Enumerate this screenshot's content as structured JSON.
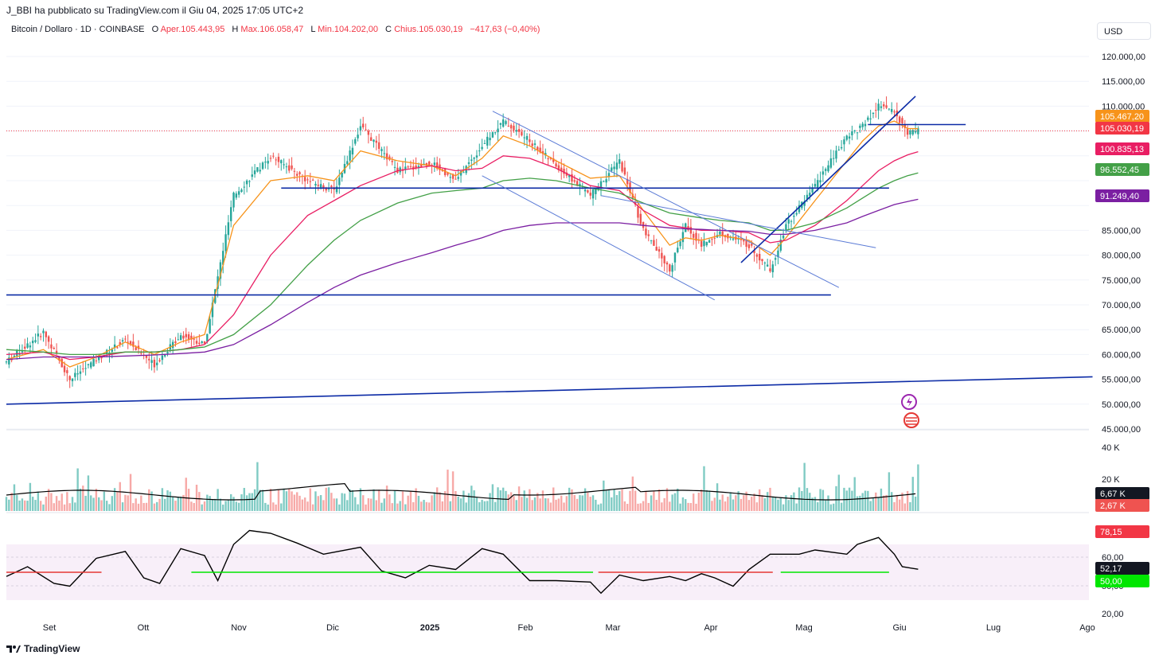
{
  "header": {
    "attribution": "J_BBI ha pubblicato su TradingView.com il Giu 04, 2025 17:05 UTC+2"
  },
  "legend": {
    "symbol": "Bitcoin / Dollaro · 1D · COINBASE",
    "open_label": "O",
    "open": "Aper.105.443,95",
    "high_label": "H",
    "high": "Max.106.058,47",
    "low_label": "L",
    "low": "Min.104.202,00",
    "close_label": "C",
    "close": "Chius.105.030,19",
    "change": "−417,63 (−0,40%)"
  },
  "currency_button": "USD",
  "footer": {
    "logo": "TradingView"
  },
  "colors": {
    "up": "#26a69a",
    "down": "#ef5350",
    "accent_blue": "#0c2ba6"
  },
  "chart_data": {
    "type": "candlestick",
    "title": "Bitcoin / Dollaro · 1D · COINBASE",
    "price_axis": {
      "ticks": [
        "120.000,00",
        "115.000,00",
        "110.000,00",
        "85.000,00",
        "80.000,00",
        "75.000,00",
        "70.000,00",
        "65.000,00",
        "60.000,00",
        "55.000,00",
        "50.000,00",
        "45.000,00"
      ],
      "ylim": [
        44000,
        122000
      ]
    },
    "x_axis": {
      "ticks": [
        "Set",
        "Ott",
        "Nov",
        "Dic",
        "2025",
        "Feb",
        "Mar",
        "Apr",
        "Mag",
        "Giu",
        "Lug",
        "Ago"
      ],
      "bold": [
        "2025"
      ]
    },
    "price_labels": [
      {
        "text": "105.467,20",
        "price": 105467,
        "color": "#f7931a"
      },
      {
        "text": "105.030,19",
        "price": 105030,
        "color": "#f23645"
      },
      {
        "text": "100.835,13",
        "price": 100835,
        "color": "#e91e63"
      },
      {
        "text": "96.552,45",
        "price": 96552,
        "color": "#43a047"
      },
      {
        "text": "91.249,40",
        "price": 91249,
        "color": "#7b1fa2"
      }
    ],
    "price_points": [
      [
        0,
        58500
      ],
      [
        14,
        64500
      ],
      [
        24,
        55000
      ],
      [
        34,
        59000
      ],
      [
        45,
        63000
      ],
      [
        56,
        58000
      ],
      [
        66,
        64000
      ],
      [
        75,
        62000
      ],
      [
        86,
        92000
      ],
      [
        100,
        100000
      ],
      [
        114,
        95000
      ],
      [
        124,
        93000
      ],
      [
        134,
        106000
      ],
      [
        148,
        97000
      ],
      [
        161,
        98500
      ],
      [
        170,
        95000
      ],
      [
        180,
        102000
      ],
      [
        188,
        107000
      ],
      [
        198,
        103000
      ],
      [
        208,
        98000
      ],
      [
        221,
        92000
      ],
      [
        232,
        99000
      ],
      [
        241,
        85000
      ],
      [
        251,
        77000
      ],
      [
        257,
        86000
      ],
      [
        263,
        82000
      ],
      [
        270,
        84500
      ],
      [
        281,
        82000
      ],
      [
        289,
        77000
      ],
      [
        295,
        86000
      ],
      [
        306,
        94000
      ],
      [
        318,
        104000
      ],
      [
        324,
        106000
      ],
      [
        330,
        110000
      ],
      [
        336,
        109000
      ],
      [
        341,
        104500
      ],
      [
        345,
        105000
      ]
    ],
    "moving_averages": [
      {
        "name": "EMA 20",
        "color": "#f7931a",
        "points": [
          [
            0,
            59000
          ],
          [
            14,
            61000
          ],
          [
            24,
            57500
          ],
          [
            34,
            59500
          ],
          [
            45,
            62500
          ],
          [
            56,
            60000
          ],
          [
            66,
            62500
          ],
          [
            75,
            64000
          ],
          [
            86,
            86000
          ],
          [
            100,
            95000
          ],
          [
            114,
            96000
          ],
          [
            124,
            95000
          ],
          [
            134,
            101000
          ],
          [
            148,
            99000
          ],
          [
            161,
            98000
          ],
          [
            170,
            96000
          ],
          [
            180,
            99500
          ],
          [
            188,
            104000
          ],
          [
            198,
            102000
          ],
          [
            208,
            99000
          ],
          [
            221,
            95500
          ],
          [
            232,
            96000
          ],
          [
            241,
            89000
          ],
          [
            251,
            82000
          ],
          [
            257,
            83500
          ],
          [
            263,
            83000
          ],
          [
            270,
            84000
          ],
          [
            281,
            83000
          ],
          [
            289,
            80000
          ],
          [
            295,
            83500
          ],
          [
            306,
            91000
          ],
          [
            318,
            99000
          ],
          [
            324,
            103000
          ],
          [
            330,
            106000
          ],
          [
            336,
            107000
          ],
          [
            341,
            105500
          ],
          [
            345,
            105467
          ]
        ]
      },
      {
        "name": "EMA 50",
        "color": "#e91e63",
        "points": [
          [
            0,
            60000
          ],
          [
            14,
            60500
          ],
          [
            24,
            59000
          ],
          [
            34,
            59500
          ],
          [
            45,
            60500
          ],
          [
            56,
            60500
          ],
          [
            66,
            61000
          ],
          [
            75,
            62000
          ],
          [
            86,
            68000
          ],
          [
            100,
            80000
          ],
          [
            114,
            88000
          ],
          [
            124,
            91000
          ],
          [
            134,
            94000
          ],
          [
            148,
            97000
          ],
          [
            161,
            98000
          ],
          [
            170,
            97000
          ],
          [
            180,
            97500
          ],
          [
            188,
            100000
          ],
          [
            198,
            99500
          ],
          [
            208,
            97500
          ],
          [
            221,
            94000
          ],
          [
            232,
            93000
          ],
          [
            241,
            89000
          ],
          [
            251,
            86000
          ],
          [
            257,
            85500
          ],
          [
            263,
            85000
          ],
          [
            270,
            85000
          ],
          [
            281,
            84500
          ],
          [
            289,
            82500
          ],
          [
            295,
            83000
          ],
          [
            306,
            86000
          ],
          [
            318,
            91000
          ],
          [
            324,
            94000
          ],
          [
            330,
            97000
          ],
          [
            336,
            99000
          ],
          [
            341,
            100200
          ],
          [
            345,
            100835
          ]
        ]
      },
      {
        "name": "EMA 100",
        "color": "#43a047",
        "points": [
          [
            0,
            61000
          ],
          [
            14,
            60500
          ],
          [
            24,
            60000
          ],
          [
            34,
            60000
          ],
          [
            45,
            60500
          ],
          [
            56,
            60500
          ],
          [
            66,
            61000
          ],
          [
            75,
            61500
          ],
          [
            86,
            64000
          ],
          [
            100,
            70000
          ],
          [
            114,
            78000
          ],
          [
            124,
            83000
          ],
          [
            134,
            87000
          ],
          [
            148,
            90500
          ],
          [
            161,
            92500
          ],
          [
            170,
            93000
          ],
          [
            180,
            93500
          ],
          [
            188,
            95000
          ],
          [
            198,
            95500
          ],
          [
            208,
            95000
          ],
          [
            221,
            93500
          ],
          [
            232,
            92500
          ],
          [
            241,
            90500
          ],
          [
            251,
            88500
          ],
          [
            257,
            88000
          ],
          [
            263,
            87500
          ],
          [
            270,
            87000
          ],
          [
            281,
            86500
          ],
          [
            289,
            85000
          ],
          [
            295,
            85000
          ],
          [
            306,
            86500
          ],
          [
            318,
            89500
          ],
          [
            324,
            91500
          ],
          [
            330,
            93500
          ],
          [
            336,
            95000
          ],
          [
            341,
            96000
          ],
          [
            345,
            96552
          ]
        ]
      },
      {
        "name": "EMA 200",
        "color": "#7b1fa2",
        "points": [
          [
            0,
            59000
          ],
          [
            14,
            59500
          ],
          [
            24,
            59500
          ],
          [
            34,
            59500
          ],
          [
            45,
            59700
          ],
          [
            56,
            59900
          ],
          [
            66,
            60200
          ],
          [
            75,
            60500
          ],
          [
            86,
            62000
          ],
          [
            100,
            66000
          ],
          [
            114,
            70500
          ],
          [
            124,
            73500
          ],
          [
            134,
            76000
          ],
          [
            148,
            78500
          ],
          [
            161,
            80500
          ],
          [
            170,
            82000
          ],
          [
            180,
            83500
          ],
          [
            188,
            85000
          ],
          [
            198,
            86000
          ],
          [
            208,
            86500
          ],
          [
            221,
            86500
          ],
          [
            232,
            86500
          ],
          [
            241,
            86000
          ],
          [
            251,
            85500
          ],
          [
            257,
            85300
          ],
          [
            263,
            85200
          ],
          [
            270,
            85000
          ],
          [
            281,
            84800
          ],
          [
            289,
            84200
          ],
          [
            295,
            84200
          ],
          [
            306,
            85000
          ],
          [
            318,
            86500
          ],
          [
            324,
            87800
          ],
          [
            330,
            89000
          ],
          [
            336,
            90200
          ],
          [
            341,
            90800
          ],
          [
            345,
            91249
          ]
        ]
      }
    ],
    "trendlines": [
      {
        "name": "horizontal-support-72k",
        "color": "#0c2ba6",
        "from": [
          0,
          72000
        ],
        "to": [
          312,
          72000
        ]
      },
      {
        "name": "horizontal-resistance-93k",
        "color": "#0c2ba6",
        "from": [
          104,
          93500
        ],
        "to": [
          334,
          93500
        ]
      },
      {
        "name": "horizontal-106k",
        "color": "#0c2ba6",
        "from": [
          326,
          106300
        ],
        "to": [
          363,
          106300
        ]
      },
      {
        "name": "long-term-support",
        "color": "#0c2ba6",
        "from": [
          0,
          50000
        ],
        "to": [
          411,
          55500
        ]
      },
      {
        "name": "uptrend-apr-may",
        "color": "#0c2ba6",
        "from": [
          278,
          78500
        ],
        "to": [
          344,
          112000
        ]
      },
      {
        "name": "falling-channel-upper",
        "color": "#5b7bd6",
        "from": [
          184,
          109000
        ],
        "to": [
          315,
          73500
        ]
      },
      {
        "name": "falling-channel-lower",
        "color": "#5b7bd6",
        "from": [
          180,
          96000
        ],
        "to": [
          268,
          71000
        ]
      },
      {
        "name": "wedge-line",
        "color": "#5b7bd6",
        "from": [
          225,
          92000
        ],
        "to": [
          329,
          81500
        ]
      }
    ],
    "volume": {
      "axis_ticks": [
        "40 K",
        "20 K"
      ],
      "labels": [
        {
          "text": "6,67 K",
          "color": "#131722"
        },
        {
          "text": "2,67 K",
          "color": "#ef5350"
        }
      ]
    },
    "rsi": {
      "axis_ticks": [
        "60,00",
        "50,00",
        "20,00"
      ],
      "labels": [
        {
          "text": "78,15",
          "color": "#f23645"
        },
        {
          "text": "52,17",
          "color": "#131722"
        },
        {
          "text": "50,00",
          "color": "#00e600"
        }
      ],
      "band": [
        30,
        70
      ],
      "points": [
        [
          0,
          47
        ],
        [
          8,
          54
        ],
        [
          18,
          42
        ],
        [
          24,
          40
        ],
        [
          34,
          60
        ],
        [
          45,
          65
        ],
        [
          52,
          46
        ],
        [
          58,
          42
        ],
        [
          66,
          67
        ],
        [
          75,
          62
        ],
        [
          80,
          44
        ],
        [
          86,
          70
        ],
        [
          92,
          80
        ],
        [
          100,
          78
        ],
        [
          110,
          71
        ],
        [
          120,
          63
        ],
        [
          134,
          68
        ],
        [
          142,
          51
        ],
        [
          151,
          46
        ],
        [
          160,
          55
        ],
        [
          170,
          52
        ],
        [
          180,
          67
        ],
        [
          188,
          63
        ],
        [
          198,
          44
        ],
        [
          208,
          44
        ],
        [
          221,
          43
        ],
        [
          225,
          35
        ],
        [
          232,
          48
        ],
        [
          241,
          44
        ],
        [
          251,
          47
        ],
        [
          257,
          44
        ],
        [
          263,
          49
        ],
        [
          268,
          46
        ],
        [
          275,
          40
        ],
        [
          281,
          52
        ],
        [
          289,
          63
        ],
        [
          300,
          63
        ],
        [
          306,
          66
        ],
        [
          318,
          63
        ],
        [
          322,
          70
        ],
        [
          330,
          75
        ],
        [
          336,
          63
        ],
        [
          339,
          54
        ],
        [
          345,
          52.17
        ]
      ]
    }
  }
}
